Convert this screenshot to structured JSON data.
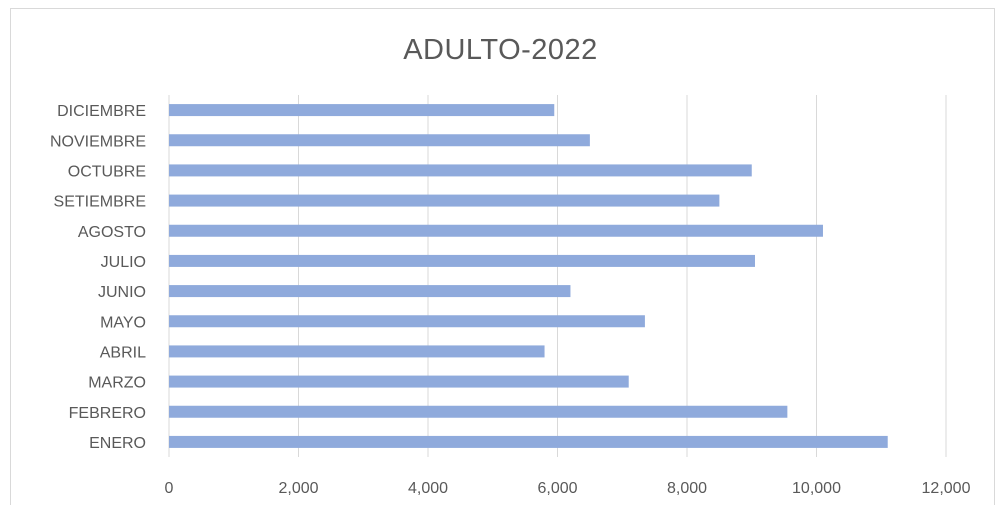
{
  "chart_data": {
    "type": "bar",
    "orientation": "horizontal",
    "title": "ADULTO-2022",
    "xlabel": "",
    "ylabel": "",
    "categories": [
      "ENERO",
      "FEBRERO",
      "MARZO",
      "ABRIL",
      "MAYO",
      "JUNIO",
      "JULIO",
      "AGOSTO",
      "SETIEMBRE",
      "OCTUBRE",
      "NOVIEMBRE",
      "DICIEMBRE"
    ],
    "values": [
      11100,
      9550,
      7100,
      5800,
      7350,
      6200,
      9050,
      10100,
      8500,
      9000,
      6500,
      5950
    ],
    "xlim": [
      0,
      12000
    ],
    "xticks": [
      0,
      2000,
      4000,
      6000,
      8000,
      10000,
      12000
    ],
    "xtick_labels": [
      "0",
      "2,000",
      "4,000",
      "6,000",
      "8,000",
      "10,000",
      "12,000"
    ],
    "grid": "vertical",
    "legend": "none",
    "bar_color": "#8faadc",
    "grid_color": "#d9d9d9"
  }
}
